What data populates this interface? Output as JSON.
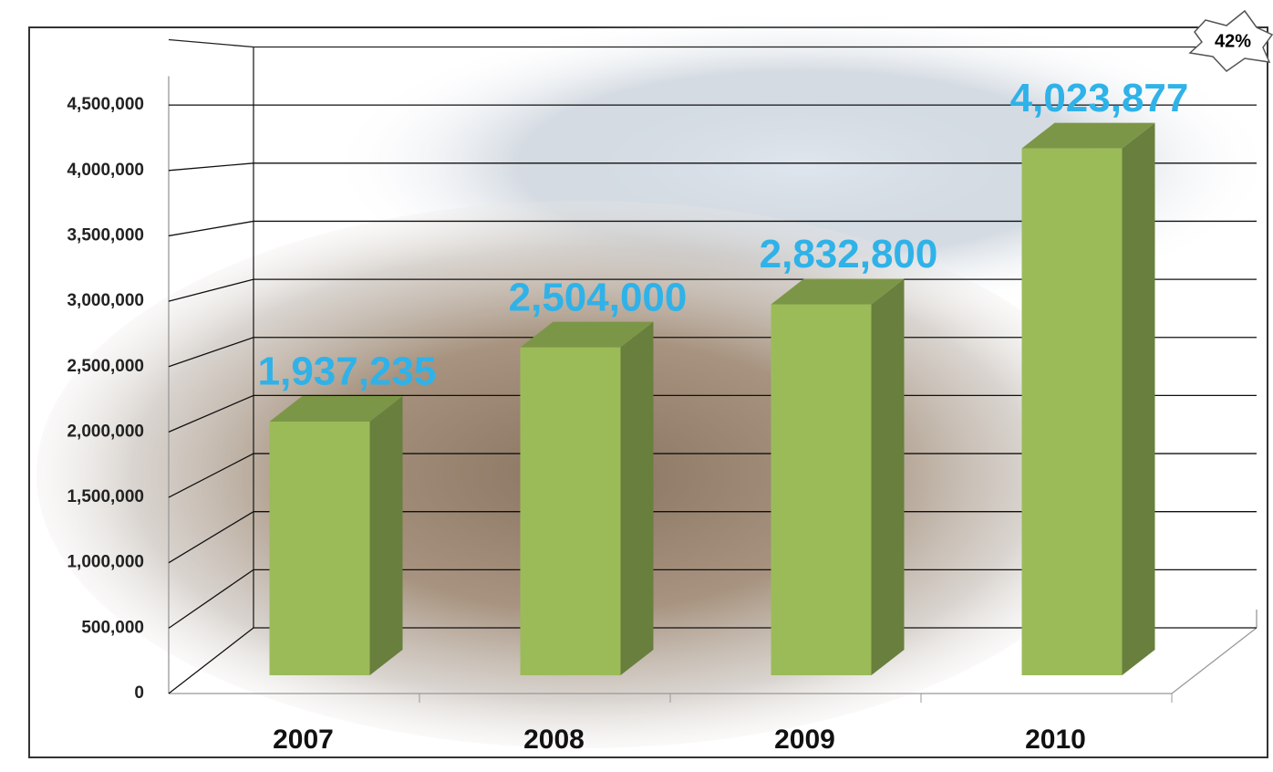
{
  "chart_data": {
    "type": "bar3d",
    "categories": [
      "2007",
      "2008",
      "2009",
      "2010"
    ],
    "values": [
      1937235,
      2504000,
      2832800,
      4023877
    ],
    "value_labels": [
      "1,937,235",
      "2,504,000",
      "2,832,800",
      "4,023,877"
    ],
    "color": "#9bbb59",
    "ylim": [
      0,
      5000000
    ],
    "yticks": [
      0,
      {
        "value": 500000,
        "label": "500,000"
      },
      {
        "value": 1000000,
        "label": "1,000,000"
      },
      {
        "value": 1500000,
        "label": "1,500,000"
      },
      {
        "value": 2000000,
        "label": "2,000,000"
      },
      {
        "value": 2500000,
        "label": "2,500,000"
      },
      {
        "value": 3000000,
        "label": "3,000,000"
      },
      {
        "value": 3500000,
        "label": "3,500,000"
      },
      {
        "value": 4000000,
        "label": "4,000,000"
      },
      {
        "value": 4500000,
        "label": "4,500,000"
      }
    ],
    "grid": true,
    "annotation": "42%"
  }
}
